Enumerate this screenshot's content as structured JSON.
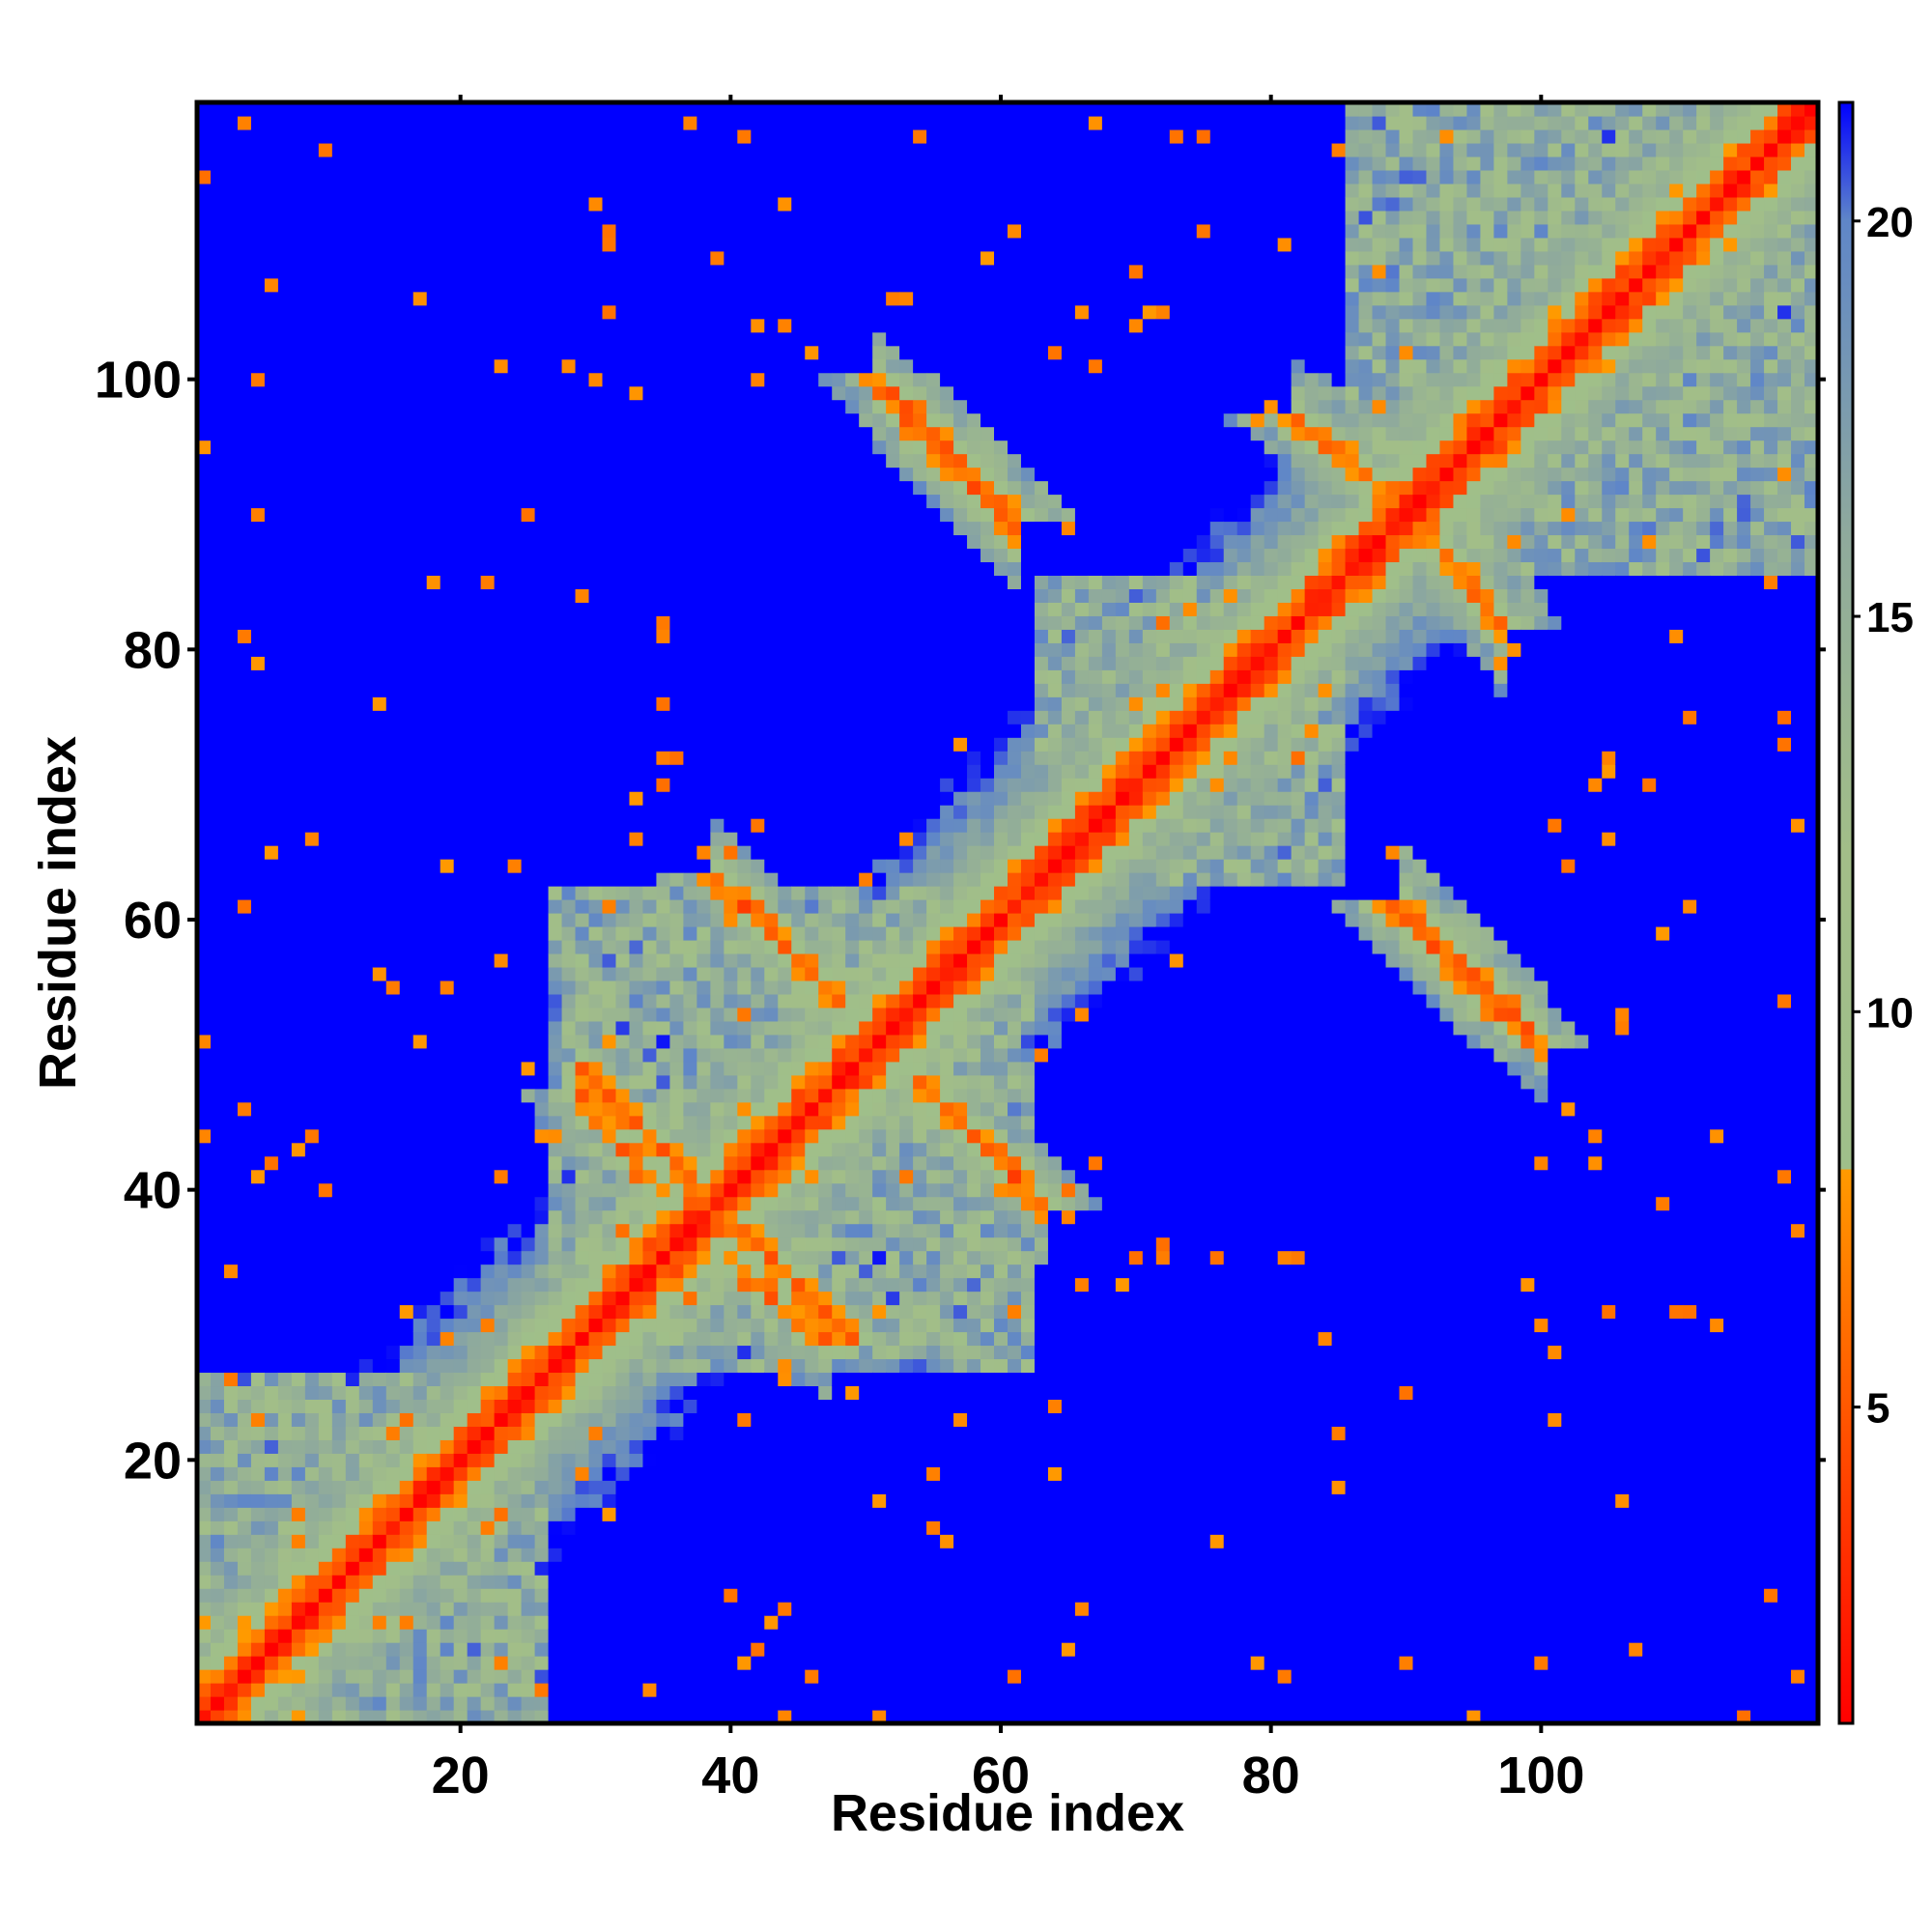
{
  "chart_data": {
    "type": "heatmap",
    "title": "",
    "xlabel": "Residue index",
    "ylabel": "Residue index",
    "n_residues": 120,
    "xlim": [
      1,
      120
    ],
    "ylim": [
      1,
      120
    ],
    "x_ticks": [
      20,
      40,
      60,
      80,
      100
    ],
    "y_ticks": [
      20,
      40,
      60,
      80,
      100
    ],
    "colorbar": {
      "range": [
        1,
        21.5
      ],
      "ticks": [
        5,
        10,
        15,
        20
      ],
      "cutoff": 8,
      "stops": [
        {
          "value": 1,
          "color": "#ff0000"
        },
        {
          "value": 8,
          "color": "#ff9a00"
        },
        {
          "value": 8.01,
          "color": "#9fbf8a"
        },
        {
          "value": 12,
          "color": "#a2be88"
        },
        {
          "value": 16,
          "color": "#8faa9c"
        },
        {
          "value": 20,
          "color": "#5f86c8"
        },
        {
          "value": 21.5,
          "color": "#0000ff"
        }
      ]
    },
    "contact_bands": [
      {
        "i": [
          40,
          46
        ],
        "j": [
          62,
          56
        ],
        "kind": "antiparallel"
      },
      {
        "i": [
          30,
          38
        ],
        "j": [
          48,
          40
        ],
        "kind": "antiparallel"
      },
      {
        "i": [
          37,
          46
        ],
        "j": [
          37,
          30
        ],
        "kind": "antiparallel"
      },
      {
        "i": [
          55,
          62
        ],
        "j": [
          47,
          40
        ],
        "kind": "antiparallel"
      },
      {
        "i": [
          52,
          60
        ],
        "j": [
          98,
          90
        ],
        "kind": "antiparallel"
      },
      {
        "i": [
          91,
          99
        ],
        "j": [
          60,
          52
        ],
        "kind": "antiparallel"
      },
      {
        "i": [
          83,
          90
        ],
        "j": [
          96,
          91
        ],
        "kind": "antiparallel"
      },
      {
        "i": [
          92,
          96
        ],
        "j": [
          89,
          83
        ],
        "kind": "antiparallel"
      }
    ],
    "domains": [
      {
        "range": [
          1,
          26
        ]
      },
      {
        "range": [
          27,
          62
        ]
      },
      {
        "range": [
          63,
          85
        ]
      },
      {
        "range": [
          86,
          120
        ]
      }
    ],
    "colors": {
      "far": "#0000ff",
      "near": "#ff0000",
      "contact": "#ff9a00",
      "mid": "#a0be88"
    }
  }
}
